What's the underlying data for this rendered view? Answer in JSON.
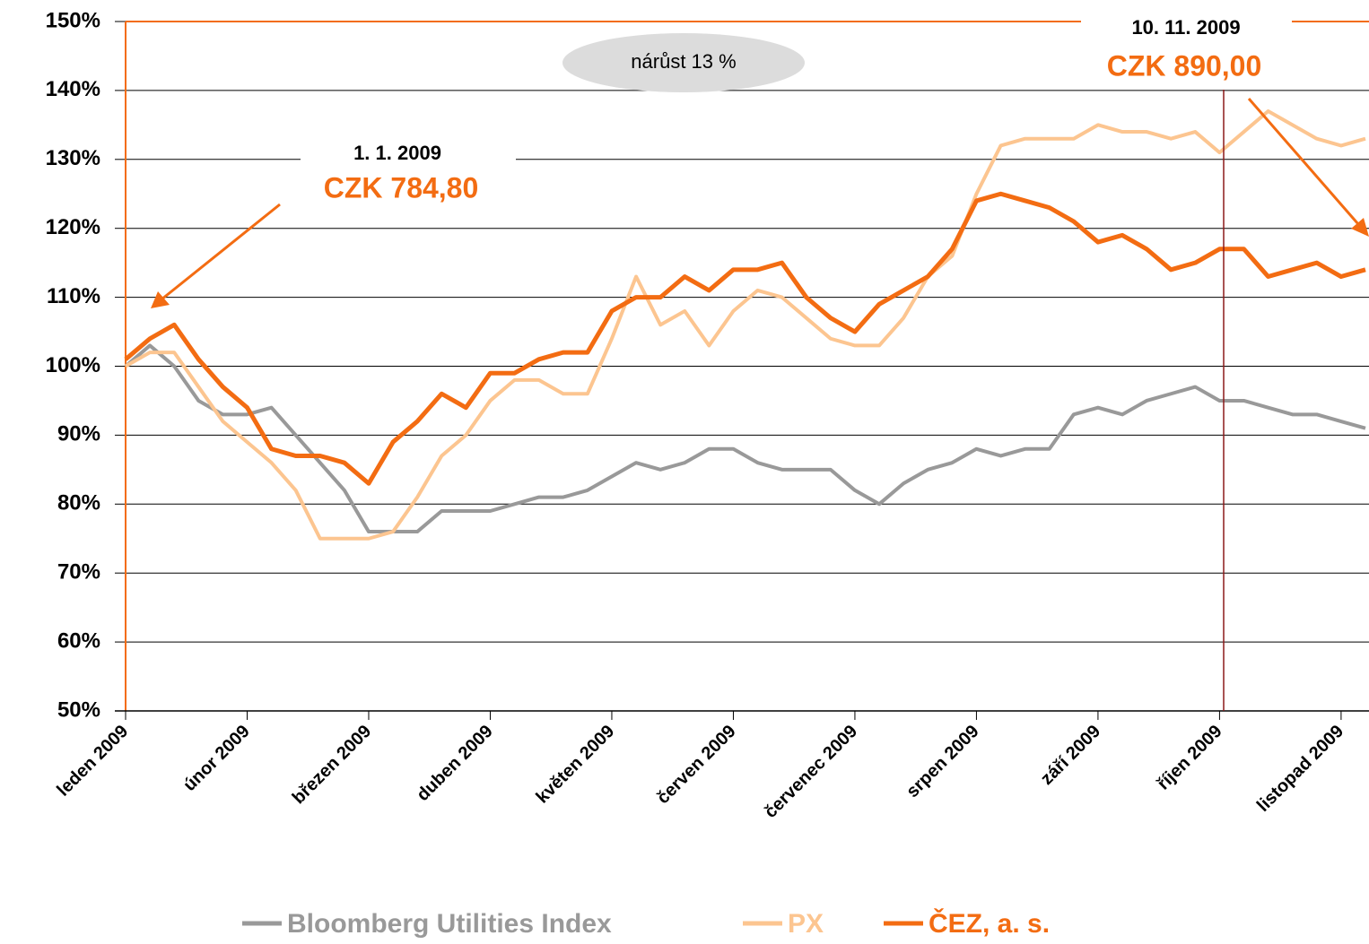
{
  "chart_data": {
    "type": "line",
    "categories": [
      "leden 2009",
      null,
      null,
      null,
      null,
      "únor 2009",
      null,
      null,
      null,
      null,
      "březen 2009",
      null,
      null,
      null,
      null,
      "duben 2009",
      null,
      null,
      null,
      null,
      "květen 2009",
      null,
      null,
      null,
      null,
      "červen 2009",
      null,
      null,
      null,
      null,
      "červenec 2009",
      null,
      null,
      null,
      null,
      "srpen 2009",
      null,
      null,
      null,
      null,
      "září 2009",
      null,
      null,
      null,
      null,
      "říjen 2009",
      null,
      null,
      null,
      null,
      "listopad 2009",
      null
    ],
    "series": [
      {
        "name": "Bloomberg Utilities Index",
        "color": "#999999",
        "values": [
          100,
          103,
          100,
          95,
          93,
          93,
          94,
          90,
          86,
          82,
          76,
          76,
          76,
          79,
          79,
          79,
          80,
          81,
          81,
          82,
          84,
          86,
          85,
          86,
          88,
          88,
          86,
          85,
          85,
          85,
          82,
          80,
          83,
          85,
          86,
          88,
          87,
          88,
          88,
          93,
          94,
          93,
          95,
          96,
          97,
          95,
          95,
          94,
          93,
          93,
          92,
          91
        ]
      },
      {
        "name": "PX",
        "color": "#fcc590",
        "values": [
          100,
          102,
          102,
          97,
          92,
          89,
          86,
          82,
          75,
          75,
          75,
          76,
          81,
          87,
          90,
          95,
          98,
          98,
          96,
          96,
          104,
          113,
          106,
          108,
          103,
          108,
          111,
          110,
          107,
          104,
          103,
          103,
          107,
          113,
          116,
          125,
          132,
          133,
          133,
          133,
          135,
          134,
          134,
          133,
          134,
          131,
          134,
          137,
          135,
          133,
          132,
          133
        ]
      },
      {
        "name": "ČEZ, a. s.",
        "color": "#f36c12",
        "values": [
          101,
          104,
          106,
          101,
          97,
          94,
          88,
          87,
          87,
          86,
          83,
          89,
          92,
          96,
          94,
          99,
          99,
          101,
          102,
          102,
          108,
          110,
          110,
          113,
          111,
          114,
          114,
          115,
          110,
          107,
          105,
          109,
          111,
          113,
          117,
          124,
          125,
          124,
          123,
          121,
          118,
          119,
          117,
          114,
          115,
          117,
          117,
          113,
          114,
          115,
          113,
          114
        ]
      }
    ],
    "ylim": [
      50,
      150
    ],
    "yticks": [
      {
        "value": 50,
        "label": "50%"
      },
      {
        "value": 60,
        "label": "60%"
      },
      {
        "value": 70,
        "label": "70%"
      },
      {
        "value": 80,
        "label": "80%"
      },
      {
        "value": 90,
        "label": "90%"
      },
      {
        "value": 100,
        "label": "100%"
      },
      {
        "value": 110,
        "label": "110%"
      },
      {
        "value": 120,
        "label": "120%"
      },
      {
        "value": 130,
        "label": "130%"
      },
      {
        "value": 140,
        "label": "140%"
      },
      {
        "value": 150,
        "label": "150%"
      }
    ],
    "grid": true,
    "legend": "bottom",
    "annotations": [
      "1. 1. 2009",
      "CZK 784,80",
      "10. 11. 2009",
      "CZK 890,00",
      "nárůst 13 %"
    ]
  }
}
